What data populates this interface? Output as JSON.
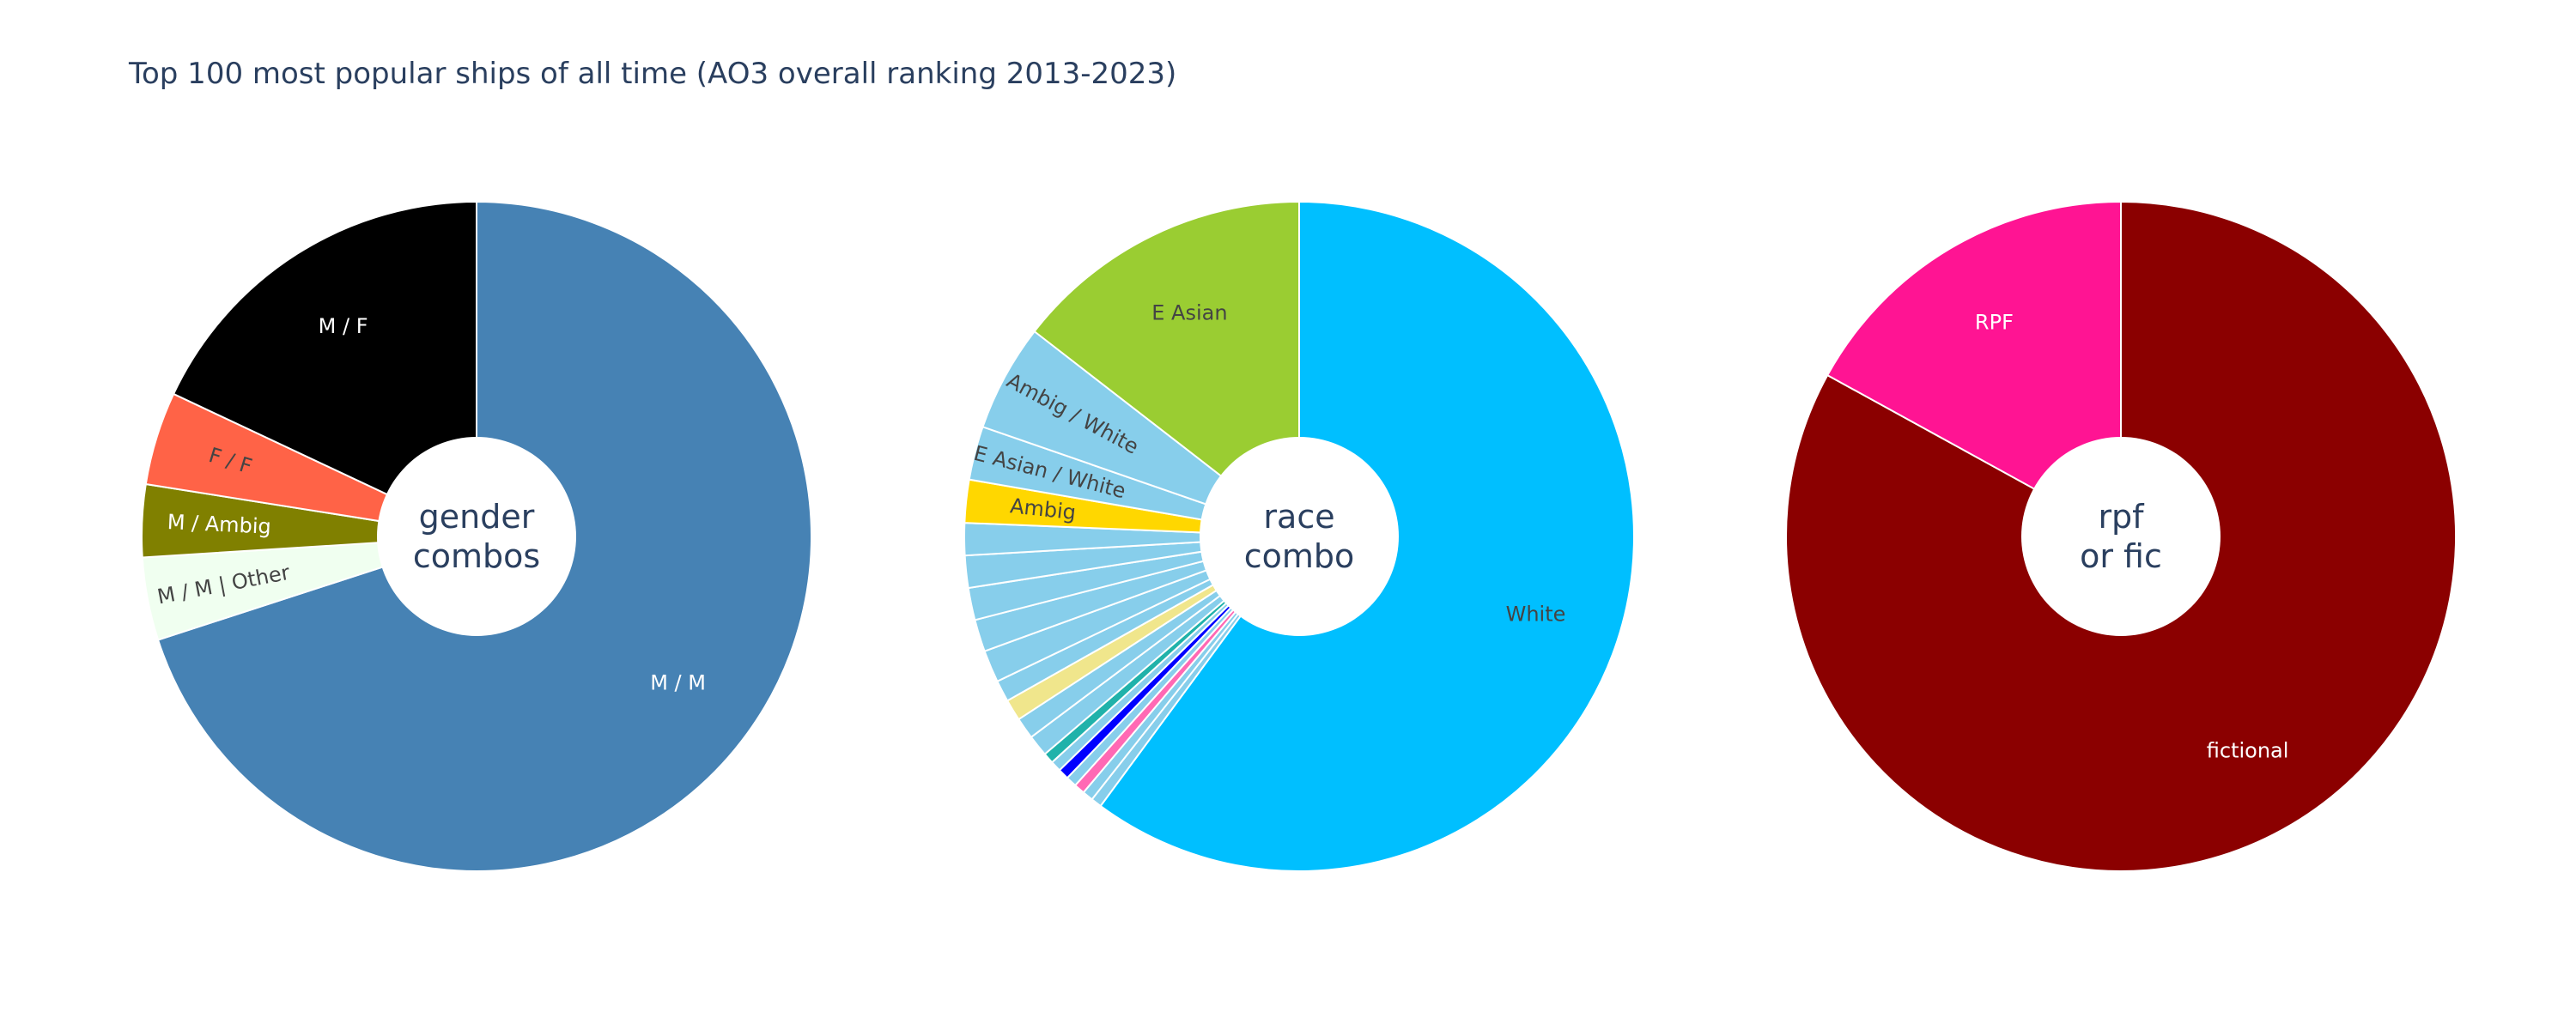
{
  "title": "Top 100 most popular ships of all time (AO3 overall ranking 2013-2023)",
  "chart_data": [
    {
      "type": "pie",
      "hole": true,
      "center_label": [
        "gender",
        "combos"
      ],
      "slices": [
        {
          "label": "M / M",
          "value": 70,
          "color": "#4682b4",
          "text_color": "#ffffff"
        },
        {
          "label": "M / M | Other",
          "value": 4,
          "color": "#f0fff0",
          "text_color": "#444444"
        },
        {
          "label": "M / Ambig",
          "value": 3.5,
          "color": "#808000",
          "text_color": "#ffffff"
        },
        {
          "label": "F / F",
          "value": 4.5,
          "color": "#ff6347",
          "text_color": "#444444"
        },
        {
          "label": "M / F",
          "value": 18,
          "color": "#000000",
          "text_color": "#ffffff"
        }
      ]
    },
    {
      "type": "pie",
      "hole": true,
      "center_label": [
        "race",
        "combo"
      ],
      "slices": [
        {
          "label": "White",
          "value": 58,
          "color": "#00bfff",
          "text_color": "#444444"
        },
        {
          "label": "",
          "value": 0.5,
          "color": "#87ceeb"
        },
        {
          "label": "",
          "value": 0.5,
          "color": "#87ceeb"
        },
        {
          "label": "",
          "value": 0.5,
          "color": "#ff69b4"
        },
        {
          "label": "",
          "value": 0.5,
          "color": "#87ceeb"
        },
        {
          "label": "",
          "value": 0.5,
          "color": "#0000ff"
        },
        {
          "label": "",
          "value": 0.5,
          "color": "#87ceeb"
        },
        {
          "label": "",
          "value": 0.5,
          "color": "#20b2aa"
        },
        {
          "label": "",
          "value": 1,
          "color": "#87ceeb"
        },
        {
          "label": "",
          "value": 1,
          "color": "#87ceeb"
        },
        {
          "label": "",
          "value": 1,
          "color": "#f0e68c"
        },
        {
          "label": "",
          "value": 1,
          "color": "#87ceeb"
        },
        {
          "label": "",
          "value": 1.5,
          "color": "#87ceeb"
        },
        {
          "label": "",
          "value": 1.5,
          "color": "#87ceeb"
        },
        {
          "label": "",
          "value": 1.5,
          "color": "#87ceeb"
        },
        {
          "label": "",
          "value": 1.5,
          "color": "#87ceeb"
        },
        {
          "label": "",
          "value": 1.5,
          "color": "#87ceeb"
        },
        {
          "label": "Ambig",
          "value": 2,
          "color": "#ffd700",
          "text_color": "#444444"
        },
        {
          "label": "E Asian / White",
          "value": 2.5,
          "color": "#87ceeb",
          "text_color": "#444444"
        },
        {
          "label": "Ambig / White",
          "value": 5,
          "color": "#87ceeb",
          "text_color": "#444444"
        },
        {
          "label": "E Asian",
          "value": 14,
          "color": "#9acd32",
          "text_color": "#444444"
        }
      ]
    },
    {
      "type": "pie",
      "hole": true,
      "center_label": [
        "rpf",
        "or fic"
      ],
      "slices": [
        {
          "label": "fictional",
          "value": 83,
          "color": "#8b0000",
          "text_color": "#ffffff"
        },
        {
          "label": "RPF",
          "value": 17,
          "color": "#ff1493",
          "text_color": "#ffffff"
        }
      ]
    }
  ]
}
